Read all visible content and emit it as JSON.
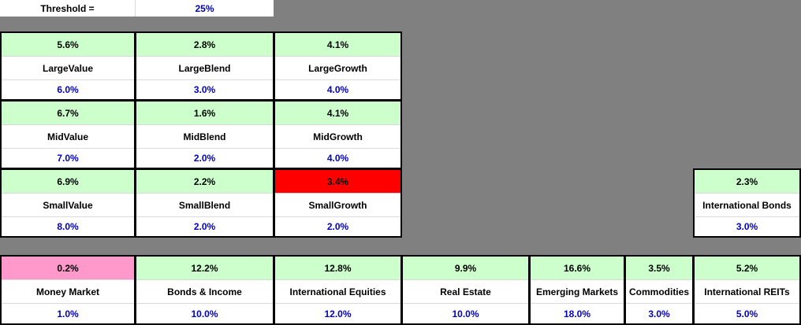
{
  "threshold": {
    "label": "Threshold  =",
    "value": "25%"
  },
  "style_grid": [
    {
      "id": "large-value",
      "actual": "5.6%",
      "name": "LargeValue",
      "target": "6.0%",
      "status_color": "#ccffcc"
    },
    {
      "id": "large-blend",
      "actual": "2.8%",
      "name": "LargeBlend",
      "target": "3.0%",
      "status_color": "#ccffcc"
    },
    {
      "id": "large-growth",
      "actual": "4.1%",
      "name": "LargeGrowth",
      "target": "4.0%",
      "status_color": "#ccffcc"
    },
    {
      "id": "mid-value",
      "actual": "6.7%",
      "name": "MidValue",
      "target": "7.0%",
      "status_color": "#ccffcc"
    },
    {
      "id": "mid-blend",
      "actual": "1.6%",
      "name": "MidBlend",
      "target": "2.0%",
      "status_color": "#ccffcc"
    },
    {
      "id": "mid-growth",
      "actual": "4.1%",
      "name": "MidGrowth",
      "target": "4.0%",
      "status_color": "#ccffcc"
    },
    {
      "id": "small-value",
      "actual": "6.9%",
      "name": "SmallValue",
      "target": "8.0%",
      "status_color": "#ccffcc"
    },
    {
      "id": "small-blend",
      "actual": "2.2%",
      "name": "SmallBlend",
      "target": "2.0%",
      "status_color": "#ccffcc"
    },
    {
      "id": "small-growth",
      "actual": "3.4%",
      "name": "SmallGrowth",
      "target": "2.0%",
      "status_color": "#ff0000"
    }
  ],
  "intl_bonds": {
    "id": "international-bonds",
    "actual": "2.3%",
    "name": "International Bonds",
    "target": "3.0%",
    "status_color": "#ccffcc"
  },
  "bottom_row": [
    {
      "id": "money-market",
      "actual": "0.2%",
      "name": "Money Market",
      "target": "1.0%",
      "status_color": "#ff99cc"
    },
    {
      "id": "bonds-income",
      "actual": "12.2%",
      "name": "Bonds & Income",
      "target": "10.0%",
      "status_color": "#ccffcc"
    },
    {
      "id": "international-equities",
      "actual": "12.8%",
      "name": "International Equities",
      "target": "12.0%",
      "status_color": "#ccffcc"
    },
    {
      "id": "real-estate",
      "actual": "9.9%",
      "name": "Real Estate",
      "target": "10.0%",
      "status_color": "#ccffcc"
    },
    {
      "id": "emerging-markets",
      "actual": "16.6%",
      "name": "Emerging Markets",
      "target": "18.0%",
      "status_color": "#ccffcc"
    },
    {
      "id": "commodities",
      "actual": "3.5%",
      "name": "Commodities",
      "target": "3.0%",
      "status_color": "#ccffcc"
    },
    {
      "id": "international-reits",
      "actual": "5.2%",
      "name": "International REITs",
      "target": "5.0%",
      "status_color": "#ccffcc"
    }
  ]
}
